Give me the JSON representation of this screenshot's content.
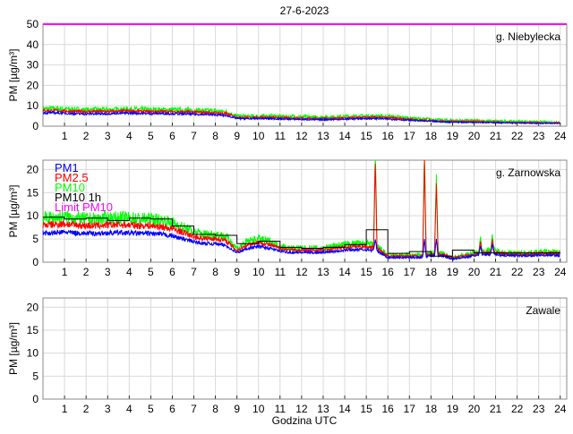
{
  "chart_data": {
    "type": "line",
    "title": "27-6-2023",
    "xlabel": "Godzina UTC",
    "ylabel": "PM [µg/m³]",
    "xlim": [
      0,
      24.3
    ],
    "x_ticks": [
      1,
      2,
      3,
      4,
      5,
      6,
      7,
      8,
      9,
      10,
      11,
      12,
      13,
      14,
      15,
      16,
      17,
      18,
      19,
      20,
      21,
      22,
      23,
      24
    ],
    "grid": true,
    "colors": {
      "PM1": "#0000ff",
      "PM2.5": "#ff0000",
      "PM10": "#00ff00",
      "PM10 1h": "#000000",
      "Limit PM10": "#ff00ff"
    },
    "limit_pm10": 50,
    "legend": {
      "placement": "top-left",
      "entries": [
        "PM1",
        "PM2.5",
        "PM10",
        "PM10 1h",
        "Limit PM10"
      ]
    },
    "x_step_hours": 0.5,
    "panels": [
      {
        "label": "g. Niebylecka",
        "ylim": [
          0,
          50
        ],
        "y_ticks": [
          0,
          10,
          20,
          30,
          40,
          50
        ],
        "series": [
          {
            "name": "PM10",
            "values": [
              8.5,
              8.6,
              8.4,
              8.2,
              8.0,
              8.1,
              8.0,
              8.2,
              8.3,
              8.2,
              8.0,
              8.1,
              8.0,
              7.9,
              7.8,
              7.6,
              7.5,
              7.0,
              5.0,
              4.8,
              4.9,
              5.0,
              4.8,
              4.7,
              4.6,
              4.5,
              4.5,
              4.6,
              4.7,
              4.9,
              5.0,
              5.0,
              4.8,
              4.5,
              4.0,
              3.6,
              3.4,
              3.0,
              2.9,
              2.8,
              2.8,
              2.6,
              2.5,
              2.4,
              2.3,
              2.2,
              2.1,
              2.0,
              2.0
            ]
          },
          {
            "name": "PM2.5",
            "values": [
              7.6,
              7.7,
              7.4,
              7.2,
              7.1,
              7.2,
              7.1,
              7.3,
              7.4,
              7.3,
              7.1,
              7.2,
              7.1,
              7.0,
              6.9,
              6.7,
              6.6,
              6.1,
              4.4,
              4.2,
              4.3,
              4.3,
              4.1,
              4.0,
              3.9,
              3.8,
              3.8,
              3.9,
              4.0,
              4.2,
              4.3,
              4.3,
              4.1,
              3.8,
              3.4,
              3.0,
              2.8,
              2.5,
              2.4,
              2.3,
              2.3,
              2.1,
              2.0,
              1.9,
              1.8,
              1.8,
              1.7,
              1.6,
              1.6
            ]
          },
          {
            "name": "PM1",
            "values": [
              6.5,
              6.6,
              6.3,
              6.1,
              6.0,
              6.1,
              6.1,
              6.3,
              6.4,
              6.3,
              6.1,
              6.2,
              6.1,
              6.0,
              5.9,
              5.7,
              5.6,
              5.2,
              3.8,
              3.6,
              3.7,
              3.7,
              3.5,
              3.4,
              3.3,
              3.2,
              3.2,
              3.3,
              3.4,
              3.6,
              3.7,
              3.7,
              3.5,
              3.2,
              2.9,
              2.6,
              2.4,
              2.1,
              2.0,
              1.9,
              1.9,
              1.8,
              1.7,
              1.6,
              1.5,
              1.5,
              1.4,
              1.4,
              1.4
            ]
          }
        ],
        "spikes": []
      },
      {
        "label": "g. Zarnowska",
        "ylim": [
          0,
          22
        ],
        "y_ticks": [
          0,
          5,
          10,
          15,
          20
        ],
        "series": [
          {
            "name": "PM10",
            "values": [
              9.5,
              9.5,
              9.8,
              9.5,
              9.3,
              9.3,
              9.5,
              9.5,
              9.5,
              9.3,
              9.3,
              9.0,
              8.5,
              7.5,
              6.5,
              6.0,
              6.0,
              5.5,
              3.0,
              4.5,
              5.0,
              4.5,
              3.5,
              3.0,
              3.0,
              3.0,
              3.0,
              3.5,
              3.8,
              4.0,
              4.0,
              3.5,
              1.5,
              1.5,
              1.5,
              1.5,
              2.0,
              2.0,
              1.0,
              1.5,
              2.0,
              2.5,
              2.5,
              2.0,
              2.0,
              2.0,
              2.2,
              2.2,
              2.2
            ]
          },
          {
            "name": "PM2.5",
            "values": [
              8.0,
              8.1,
              8.3,
              8.0,
              7.9,
              7.9,
              8.0,
              8.1,
              8.0,
              7.9,
              7.9,
              7.6,
              7.2,
              6.4,
              5.5,
              5.1,
              5.1,
              4.6,
              2.5,
              3.8,
              4.3,
              3.8,
              3.0,
              2.6,
              2.6,
              2.6,
              2.6,
              3.0,
              3.2,
              3.4,
              3.4,
              3.0,
              1.3,
              1.3,
              1.3,
              1.3,
              1.7,
              1.7,
              0.9,
              1.3,
              1.7,
              2.1,
              2.1,
              1.7,
              1.7,
              1.7,
              1.9,
              1.9,
              1.9
            ]
          },
          {
            "name": "PM1",
            "values": [
              6.3,
              6.3,
              6.5,
              6.3,
              6.2,
              6.2,
              6.3,
              6.4,
              6.3,
              6.2,
              6.2,
              6.0,
              5.7,
              5.0,
              4.4,
              4.0,
              4.0,
              3.6,
              2.0,
              3.0,
              3.4,
              3.0,
              2.4,
              2.1,
              2.1,
              2.1,
              2.1,
              2.4,
              2.6,
              2.7,
              2.7,
              2.4,
              1.0,
              1.0,
              1.0,
              1.0,
              1.4,
              1.4,
              0.7,
              1.0,
              1.4,
              1.7,
              1.7,
              1.4,
              1.4,
              1.4,
              1.5,
              1.5,
              1.5
            ]
          }
        ],
        "hourly_pm10": [
          9.7,
          9.3,
          9.5,
          9.0,
          9.5,
          9.3,
          7.8,
          6.0,
          5.8,
          4.0,
          4.5,
          3.2,
          3.0,
          3.2,
          3.8,
          7.0,
          1.9,
          2.3,
          1.3,
          2.6,
          2.0,
          2.0,
          2.0,
          2.0
        ],
        "spikes": [
          {
            "hour": 15.42,
            "PM10": 25,
            "PM2.5": 22,
            "PM1": 5
          },
          {
            "hour": 17.7,
            "PM10": 25,
            "PM2.5": 22,
            "PM1": 5
          },
          {
            "hour": 18.25,
            "PM10": 19,
            "PM2.5": 17,
            "PM1": 5
          },
          {
            "hour": 20.3,
            "PM10": 5.5,
            "PM2.5": 4.5,
            "PM1": 3.5
          },
          {
            "hour": 20.85,
            "PM10": 6,
            "PM2.5": 5,
            "PM1": 4
          }
        ]
      },
      {
        "label": "Zawale",
        "ylim": [
          0,
          22
        ],
        "y_ticks": [
          0,
          5,
          10,
          15,
          20
        ],
        "series": [],
        "spikes": []
      }
    ]
  }
}
